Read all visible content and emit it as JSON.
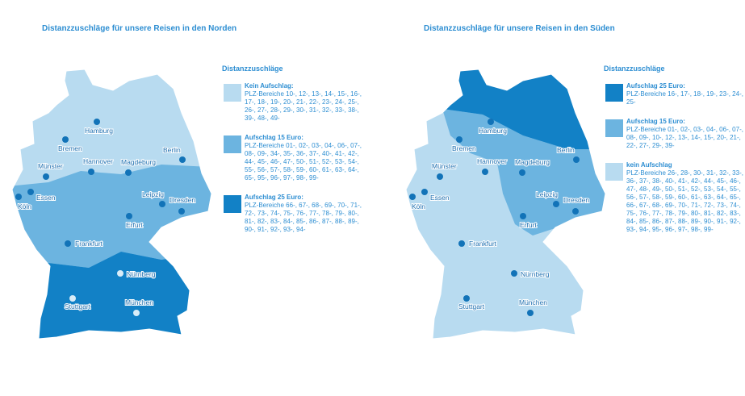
{
  "panels": [
    {
      "title": "Distanzzuschläge für unsere Reisen in den Norden",
      "legend_title": "Distanzzuschläge",
      "legend": [
        {
          "heading": "Kein Aufschlag:",
          "text": "PLZ-Bereiche 10-, 12-, 13-, 14-, 15-, 16-, 17-, 18-, 19-, 20-, 21-, 22-, 23-, 24-, 25-, 26-, 27-, 28-, 29-, 30-, 31-, 32-, 33-, 38-, 39-, 48-, 49-",
          "color": "#b8dbf0"
        },
        {
          "heading": "Aufschlag 15 Euro:",
          "text": "PLZ-Bereiche 01-, 02-, 03-, 04-, 06-, 07-, 08-, 09-, 34-, 35-, 36-, 37-, 40-, 41-, 42-, 44-, 45-, 46-, 47-, 50-, 51-, 52-, 53-, 54-, 55-, 56-, 57-, 58-, 59-, 60-, 61-, 63-, 64-, 65-, 95-, 96-, 97-, 98-, 99-",
          "color": "#6cb4e0"
        },
        {
          "heading": "Aufschlag 25 Euro:",
          "text": "PLZ-Bereiche 66-, 67-, 68-, 69-, 70-, 71-, 72-, 73-, 74-, 75-, 76-, 77-, 78-, 79-, 80-, 81-, 82-, 83-, 84-, 85-, 86-, 87-, 88-, 89-, 90-, 91-, 92-, 93-, 94-",
          "color": "#1281c6"
        }
      ],
      "cities": [
        "Hamburg",
        "Bremen",
        "Hannover",
        "Berlin",
        "Münster",
        "Magdeburg",
        "Essen",
        "Köln",
        "Leipzig",
        "Dresden",
        "Erfurt",
        "Frankfurt",
        "Nürnberg",
        "Stuttgart",
        "München"
      ]
    },
    {
      "title": "Distanzzuschläge für unsere Reisen in den Süden",
      "legend_title": "Distanzzuschläge",
      "legend": [
        {
          "heading": "Aufschlag 25 Euro:",
          "text": "PLZ-Bereiche 16-, 17-, 18-, 19-, 23-, 24-, 25-",
          "color": "#1281c6"
        },
        {
          "heading": "Aufschlag 15 Euro:",
          "text": "PLZ-Bereiche 01-, 02-, 03-, 04-, 06-, 07-, 08-, 09-, 10-, 12-, 13-, 14-, 15-, 20-, 21-, 22-, 27-, 29-, 39-",
          "color": "#6cb4e0"
        },
        {
          "heading": "kein Aufschlag",
          "text": "PLZ-Bereiche 26-, 28-, 30-, 31-, 32-, 33-, 36-, 37-, 38-, 40-, 41-, 42-, 44-, 45-, 46-, 47-, 48-, 49-, 50-, 51-, 52-, 53-, 54-, 55-, 56-, 57-, 58-, 59-, 60-, 61-, 63-, 64-, 65-, 66-, 67-, 68-, 69-, 70-, 71-, 72-, 73-, 74-, 75-, 76-, 77-, 78-, 79-, 80-, 81-, 82-, 83-, 84-, 85-, 86-, 87-, 88-, 89-, 90-, 91-, 92-, 93-, 94-, 95-, 96-, 97-, 98-, 99-",
          "color": "#b8dbf0"
        }
      ],
      "cities": [
        "Hamburg",
        "Bremen",
        "Hannover",
        "Berlin",
        "Münster",
        "Magdeburg",
        "Essen",
        "Köln",
        "Leipzig",
        "Dresden",
        "Erfurt",
        "Frankfurt",
        "Nürnberg",
        "Stuttgart",
        "München"
      ]
    }
  ]
}
